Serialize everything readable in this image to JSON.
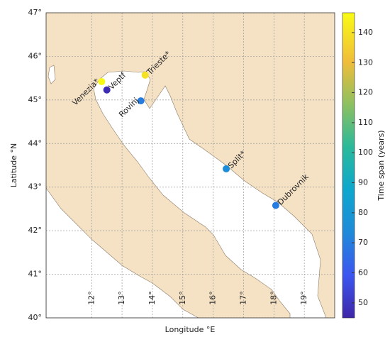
{
  "chart_data": {
    "type": "scatter",
    "x_label": "Longitude °E",
    "y_label": "Latitude °N",
    "xlim": [
      10.5,
      20
    ],
    "ylim": [
      40,
      47
    ],
    "xticks": [
      {
        "value": 12,
        "label": "12°"
      },
      {
        "value": 13,
        "label": "13°"
      },
      {
        "value": 14,
        "label": "14°"
      },
      {
        "value": 15,
        "label": "15°"
      },
      {
        "value": 16,
        "label": "16°"
      },
      {
        "value": 17,
        "label": "17°"
      },
      {
        "value": 18,
        "label": "18°"
      },
      {
        "value": 19,
        "label": "19°"
      }
    ],
    "yticks": [
      {
        "value": 40,
        "label": "40°"
      },
      {
        "value": 41,
        "label": "41°"
      },
      {
        "value": 42,
        "label": "42°"
      },
      {
        "value": 43,
        "label": "43°"
      },
      {
        "value": 44,
        "label": "44°"
      },
      {
        "value": 45,
        "label": "45°"
      },
      {
        "value": 46,
        "label": "46°"
      },
      {
        "value": 47,
        "label": "47°"
      }
    ],
    "grid": true,
    "colorbar_label": "Time span (years)",
    "clim": [
      45,
      146.6
    ],
    "cticks": [
      50,
      60,
      70,
      80,
      90,
      100,
      110,
      120,
      130,
      140
    ],
    "labels": [
      "Venezia*",
      "Veptf",
      "Trieste*",
      "Rovinj",
      "Split*",
      "Dubrovnik"
    ],
    "x": [
      12.33,
      12.5,
      13.76,
      13.62,
      16.43,
      18.06
    ],
    "y": [
      45.42,
      45.23,
      45.57,
      44.98,
      43.42,
      42.58
    ],
    "color_values": [
      146,
      47,
      140,
      70,
      75,
      70
    ]
  }
}
